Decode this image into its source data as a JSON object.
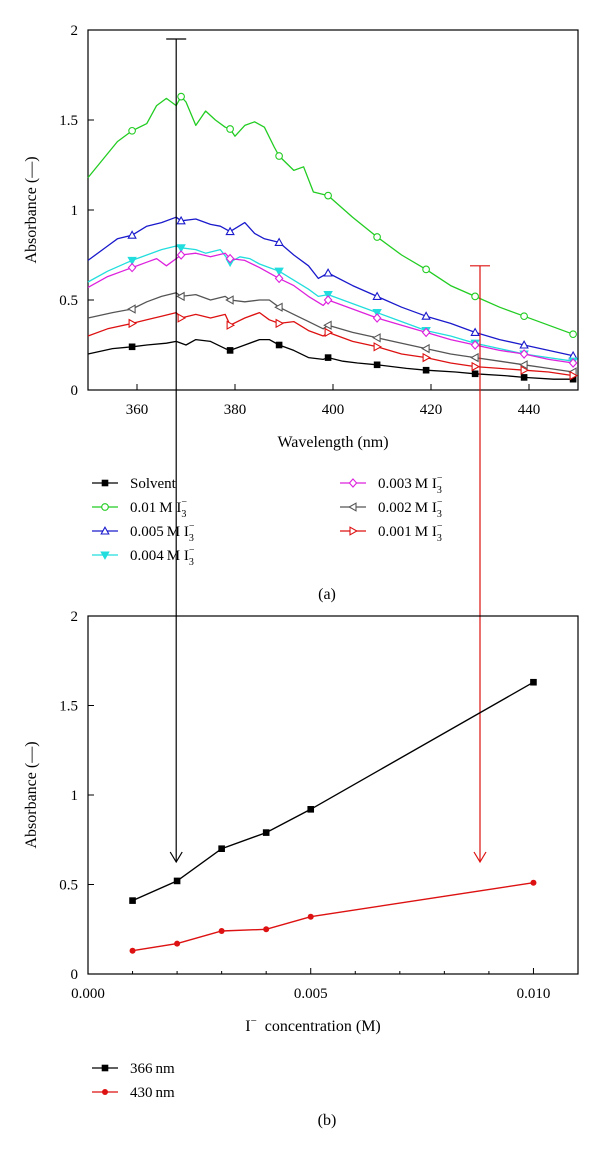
{
  "chart_data": [
    {
      "type": "line",
      "panel_label": "(a)",
      "xlabel": "Wavelength (nm)",
      "ylabel": "Absorbance (—)",
      "xlim": [
        350,
        450
      ],
      "ylim": [
        0,
        2
      ],
      "x_ticks": [
        360,
        380,
        400,
        420,
        440
      ],
      "y_ticks": [
        0,
        0.5,
        1,
        1.5,
        2
      ],
      "y_tick_labels": [
        "0",
        "0.5",
        "1",
        "1.5",
        "2"
      ],
      "grid": false,
      "legend_position": "below",
      "series": [
        {
          "name": "Solvent",
          "label_main": "Solvent",
          "label_sup": "",
          "marker": "square",
          "color": "#000000",
          "x": [
            350,
            355,
            359,
            362,
            366,
            368,
            370,
            372,
            375,
            378,
            379,
            382,
            385,
            387,
            389,
            392,
            395,
            398,
            399,
            402,
            405,
            409,
            415,
            419,
            425,
            429,
            435,
            439,
            445,
            449
          ],
          "y": [
            0.2,
            0.23,
            0.24,
            0.25,
            0.26,
            0.27,
            0.25,
            0.28,
            0.27,
            0.23,
            0.22,
            0.25,
            0.28,
            0.28,
            0.25,
            0.22,
            0.18,
            0.17,
            0.18,
            0.16,
            0.15,
            0.14,
            0.12,
            0.11,
            0.1,
            0.09,
            0.08,
            0.07,
            0.06,
            0.06
          ]
        },
        {
          "name": "0.01 M I3−",
          "label_main": "0.01 M I",
          "label_sup": "−",
          "marker": "circle",
          "color": "#22cc22",
          "x": [
            350,
            353,
            356,
            358,
            359,
            362,
            364,
            366,
            368,
            369,
            370,
            372,
            374,
            376,
            378,
            379,
            380,
            382,
            384,
            386,
            388,
            389,
            392,
            394,
            396,
            399,
            404,
            409,
            414,
            419,
            424,
            429,
            434,
            439,
            444,
            449
          ],
          "y": [
            1.18,
            1.28,
            1.38,
            1.42,
            1.44,
            1.48,
            1.58,
            1.62,
            1.58,
            1.63,
            1.6,
            1.47,
            1.55,
            1.5,
            1.46,
            1.45,
            1.41,
            1.47,
            1.49,
            1.46,
            1.35,
            1.3,
            1.22,
            1.24,
            1.1,
            1.08,
            0.96,
            0.85,
            0.75,
            0.67,
            0.58,
            0.52,
            0.46,
            0.41,
            0.36,
            0.31
          ]
        },
        {
          "name": "0.005 M I3−",
          "label_main": "0.005 M I",
          "label_sup": "−",
          "marker": "triangle-up",
          "color": "#1a1acc",
          "x": [
            350,
            354,
            356,
            359,
            362,
            365,
            368,
            369,
            372,
            375,
            377,
            379,
            382,
            384,
            386,
            389,
            392,
            395,
            397,
            399,
            404,
            409,
            414,
            419,
            424,
            429,
            434,
            439,
            444,
            449
          ],
          "y": [
            0.72,
            0.8,
            0.84,
            0.86,
            0.91,
            0.93,
            0.96,
            0.94,
            0.95,
            0.92,
            0.91,
            0.88,
            0.93,
            0.87,
            0.84,
            0.82,
            0.75,
            0.69,
            0.62,
            0.65,
            0.58,
            0.52,
            0.46,
            0.41,
            0.37,
            0.32,
            0.28,
            0.25,
            0.22,
            0.19
          ]
        },
        {
          "name": "0.004 M I3−",
          "label_main": "0.004 M I",
          "label_sup": "−",
          "marker": "triangle-down",
          "color": "#22dddd",
          "x": [
            350,
            354,
            359,
            362,
            365,
            368,
            369,
            372,
            374,
            377,
            379,
            381,
            383,
            385,
            387,
            389,
            392,
            395,
            397,
            399,
            404,
            409,
            414,
            419,
            424,
            429,
            434,
            439,
            444,
            449
          ],
          "y": [
            0.6,
            0.66,
            0.72,
            0.75,
            0.78,
            0.8,
            0.79,
            0.78,
            0.76,
            0.78,
            0.71,
            0.74,
            0.73,
            0.7,
            0.68,
            0.66,
            0.61,
            0.56,
            0.52,
            0.53,
            0.48,
            0.43,
            0.38,
            0.33,
            0.3,
            0.26,
            0.23,
            0.2,
            0.18,
            0.16
          ]
        },
        {
          "name": "0.003 M I3−",
          "label_main": "0.003 M I",
          "label_sup": "−",
          "marker": "diamond",
          "color": "#dd22dd",
          "x": [
            350,
            354,
            357,
            359,
            362,
            364,
            366,
            368,
            369,
            372,
            375,
            378,
            379,
            382,
            385,
            389,
            392,
            395,
            398,
            399,
            404,
            409,
            414,
            419,
            424,
            429,
            434,
            439,
            444,
            449
          ],
          "y": [
            0.57,
            0.63,
            0.66,
            0.68,
            0.71,
            0.73,
            0.69,
            0.73,
            0.75,
            0.76,
            0.74,
            0.76,
            0.73,
            0.72,
            0.68,
            0.62,
            0.58,
            0.52,
            0.47,
            0.5,
            0.45,
            0.4,
            0.36,
            0.32,
            0.28,
            0.25,
            0.22,
            0.2,
            0.17,
            0.15
          ]
        },
        {
          "name": "0.002 M I3−",
          "label_main": "0.002 M I",
          "label_sup": "−",
          "marker": "triangle-left",
          "color": "#555555",
          "x": [
            350,
            355,
            359,
            362,
            365,
            368,
            369,
            372,
            375,
            378,
            379,
            382,
            385,
            387,
            389,
            392,
            395,
            398,
            399,
            404,
            409,
            414,
            419,
            424,
            429,
            434,
            439,
            444,
            449
          ],
          "y": [
            0.4,
            0.43,
            0.45,
            0.49,
            0.52,
            0.54,
            0.52,
            0.53,
            0.5,
            0.52,
            0.5,
            0.49,
            0.5,
            0.5,
            0.46,
            0.42,
            0.38,
            0.34,
            0.36,
            0.32,
            0.29,
            0.26,
            0.23,
            0.2,
            0.18,
            0.16,
            0.14,
            0.12,
            0.1
          ]
        },
        {
          "name": "0.001 M I3−",
          "label_main": "0.001 M I",
          "label_sup": "−",
          "marker": "triangle-right",
          "color": "#dd1111",
          "x": [
            350,
            354,
            359,
            362,
            365,
            368,
            369,
            372,
            375,
            378,
            379,
            382,
            385,
            387,
            389,
            392,
            395,
            398,
            399,
            404,
            409,
            414,
            419,
            424,
            429,
            434,
            439,
            444,
            449
          ],
          "y": [
            0.3,
            0.34,
            0.37,
            0.39,
            0.41,
            0.43,
            0.4,
            0.42,
            0.4,
            0.42,
            0.36,
            0.4,
            0.43,
            0.39,
            0.37,
            0.38,
            0.33,
            0.3,
            0.32,
            0.27,
            0.24,
            0.2,
            0.18,
            0.15,
            0.13,
            0.12,
            0.11,
            0.1,
            0.08
          ]
        }
      ],
      "arrows": [
        {
          "color": "#000000",
          "x": 368,
          "y_from": 1.95,
          "y_to": 0.04
        },
        {
          "color": "#dd1111",
          "x": 430,
          "y_from": 0.69,
          "y_to": 0.04
        }
      ]
    },
    {
      "type": "line",
      "panel_label": "(b)",
      "xlabel_main": "I",
      "xlabel_sup": "−",
      "xlabel_rest": "  concentration (M)",
      "ylabel": "Absorbance (—)",
      "xlim": [
        0,
        0.011
      ],
      "ylim": [
        0,
        2
      ],
      "x_ticks": [
        0,
        0.005,
        0.01
      ],
      "x_tick_labels": [
        "0.000",
        "0.005",
        "0.010"
      ],
      "x_minor_ticks": [
        0.001,
        0.002,
        0.003,
        0.004,
        0.006,
        0.007,
        0.008,
        0.009
      ],
      "y_ticks": [
        0,
        0.5,
        1,
        1.5,
        2
      ],
      "y_tick_labels": [
        "0",
        "0.5",
        "1",
        "1.5",
        "2"
      ],
      "grid": false,
      "legend_position": "below",
      "series": [
        {
          "name": "366 nm",
          "marker": "square",
          "color": "#000000",
          "x": [
            0.001,
            0.002,
            0.003,
            0.004,
            0.005,
            0.01
          ],
          "y": [
            0.41,
            0.52,
            0.7,
            0.79,
            0.92,
            1.63
          ]
        },
        {
          "name": "430 nm",
          "marker": "circle-filled",
          "color": "#dd1111",
          "x": [
            0.001,
            0.002,
            0.003,
            0.004,
            0.005,
            0.01
          ],
          "y": [
            0.13,
            0.17,
            0.24,
            0.25,
            0.32,
            0.51
          ]
        }
      ]
    }
  ]
}
